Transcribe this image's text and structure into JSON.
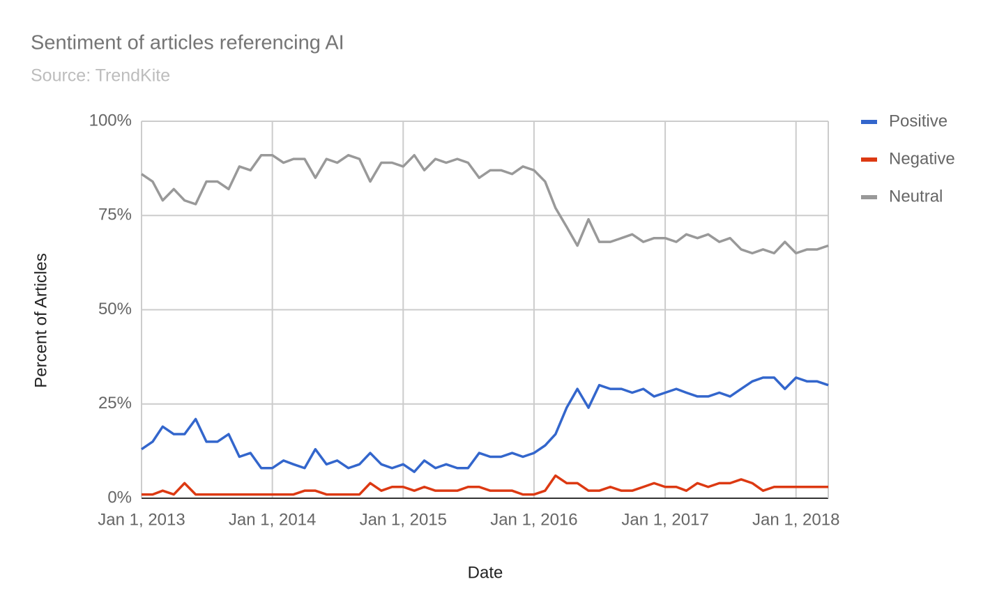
{
  "chart_data": {
    "type": "line",
    "title": "Sentiment of articles referencing AI",
    "subtitle": "Source: TrendKite",
    "x_label": "Date",
    "y_label": "Percent of Articles",
    "x": [
      "2013-01-01",
      "2013-02-01",
      "2013-03-01",
      "2013-04-01",
      "2013-05-01",
      "2013-06-01",
      "2013-07-01",
      "2013-08-01",
      "2013-09-01",
      "2013-10-01",
      "2013-11-01",
      "2013-12-01",
      "2014-01-01",
      "2014-02-01",
      "2014-03-01",
      "2014-04-01",
      "2014-05-01",
      "2014-06-01",
      "2014-07-01",
      "2014-08-01",
      "2014-09-01",
      "2014-10-01",
      "2014-11-01",
      "2014-12-01",
      "2015-01-01",
      "2015-02-01",
      "2015-03-01",
      "2015-04-01",
      "2015-05-01",
      "2015-06-01",
      "2015-07-01",
      "2015-08-01",
      "2015-09-01",
      "2015-10-01",
      "2015-11-01",
      "2015-12-01",
      "2016-01-01",
      "2016-02-01",
      "2016-03-01",
      "2016-04-01",
      "2016-05-01",
      "2016-06-01",
      "2016-07-01",
      "2016-08-01",
      "2016-09-01",
      "2016-10-01",
      "2016-11-01",
      "2016-12-01",
      "2017-01-01",
      "2017-02-01",
      "2017-03-01",
      "2017-04-01",
      "2017-05-01",
      "2017-06-01",
      "2017-07-01",
      "2017-08-01",
      "2017-09-01",
      "2017-10-01",
      "2017-11-01",
      "2017-12-01",
      "2018-01-01",
      "2018-02-01",
      "2018-03-01",
      "2018-04-01"
    ],
    "series": [
      {
        "name": "Positive",
        "color": "#3366cc",
        "values": [
          13,
          15,
          19,
          17,
          17,
          21,
          15,
          15,
          17,
          11,
          12,
          8,
          8,
          10,
          9,
          8,
          13,
          9,
          10,
          8,
          9,
          12,
          9,
          8,
          9,
          7,
          10,
          8,
          9,
          8,
          8,
          12,
          11,
          11,
          12,
          11,
          12,
          14,
          17,
          24,
          29,
          24,
          30,
          29,
          29,
          28,
          29,
          27,
          28,
          29,
          28,
          27,
          27,
          28,
          27,
          29,
          31,
          32,
          32,
          29,
          32,
          31,
          31,
          30
        ]
      },
      {
        "name": "Negative",
        "color": "#dc3912",
        "values": [
          1,
          1,
          2,
          1,
          4,
          1,
          1,
          1,
          1,
          1,
          1,
          1,
          1,
          1,
          1,
          2,
          2,
          1,
          1,
          1,
          1,
          4,
          2,
          3,
          3,
          2,
          3,
          2,
          2,
          2,
          3,
          3,
          2,
          2,
          2,
          1,
          1,
          2,
          6,
          4,
          4,
          2,
          2,
          3,
          2,
          2,
          3,
          4,
          3,
          3,
          2,
          4,
          3,
          4,
          4,
          5,
          4,
          2,
          3,
          3,
          3,
          3,
          3,
          3
        ]
      },
      {
        "name": "Neutral",
        "color": "#999999",
        "values": [
          86,
          84,
          79,
          82,
          79,
          78,
          84,
          84,
          82,
          88,
          87,
          91,
          91,
          89,
          90,
          90,
          85,
          90,
          89,
          91,
          90,
          84,
          89,
          89,
          88,
          91,
          87,
          90,
          89,
          90,
          89,
          85,
          87,
          87,
          86,
          88,
          87,
          84,
          77,
          72,
          67,
          74,
          68,
          68,
          69,
          70,
          68,
          69,
          69,
          68,
          70,
          69,
          70,
          68,
          69,
          66,
          65,
          66,
          65,
          68,
          65,
          66,
          66,
          67
        ]
      }
    ],
    "xlim": [
      "2013-01-01",
      "2018-04-01"
    ],
    "xticks": [
      {
        "value": "2013-01-01",
        "label": "Jan 1, 2013"
      },
      {
        "value": "2014-01-01",
        "label": "Jan 1, 2014"
      },
      {
        "value": "2015-01-01",
        "label": "Jan 1, 2015"
      },
      {
        "value": "2016-01-01",
        "label": "Jan 1, 2016"
      },
      {
        "value": "2017-01-01",
        "label": "Jan 1, 2017"
      },
      {
        "value": "2018-01-01",
        "label": "Jan 1, 2018"
      }
    ],
    "ylim": [
      0,
      100
    ],
    "yticks": [
      {
        "value": 0,
        "label": "0%"
      },
      {
        "value": 25,
        "label": "25%"
      },
      {
        "value": 50,
        "label": "50%"
      },
      {
        "value": 75,
        "label": "75%"
      },
      {
        "value": 100,
        "label": "100%"
      }
    ],
    "grid": true,
    "legend": "right"
  }
}
